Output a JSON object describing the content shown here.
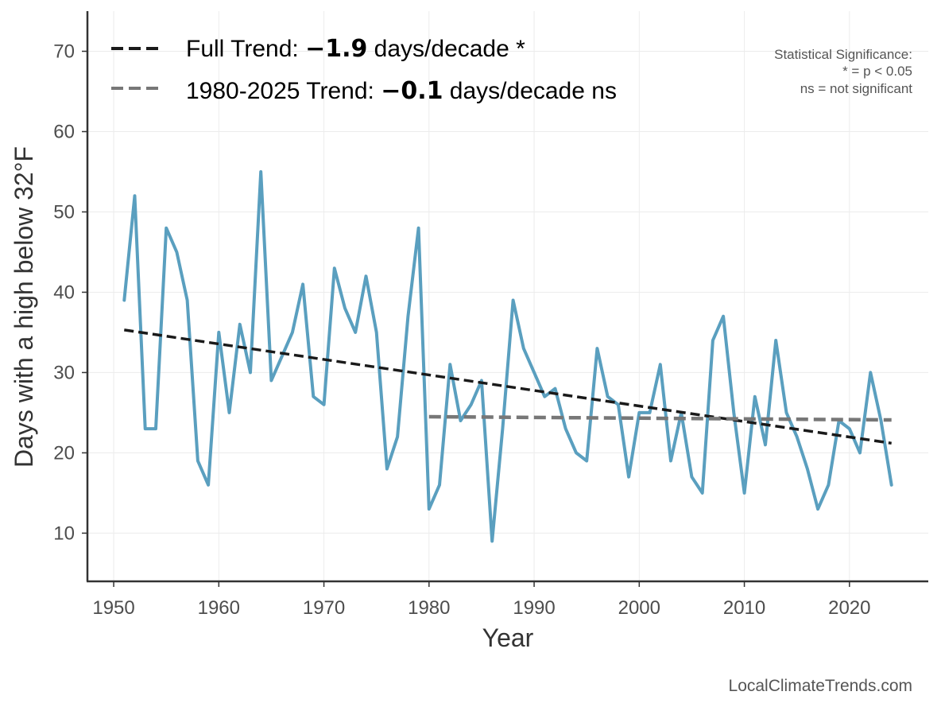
{
  "chart_data": {
    "type": "line",
    "xlabel": "Year",
    "ylabel": "Days with a high below 32°F",
    "xlim": [
      1947.5,
      2027.5
    ],
    "ylim": [
      4,
      75
    ],
    "xticks": [
      1950,
      1960,
      1970,
      1980,
      1990,
      2000,
      2010,
      2020
    ],
    "yticks": [
      10,
      20,
      30,
      40,
      50,
      60,
      70
    ],
    "grid": true,
    "series": [
      {
        "name": "Days with a high below 32°F",
        "color": "#5a9fbf",
        "x": [
          1951,
          1952,
          1953,
          1954,
          1955,
          1956,
          1957,
          1958,
          1959,
          1960,
          1961,
          1962,
          1963,
          1964,
          1965,
          1966,
          1967,
          1968,
          1969,
          1970,
          1971,
          1972,
          1973,
          1974,
          1975,
          1976,
          1977,
          1978,
          1979,
          1980,
          1981,
          1982,
          1983,
          1984,
          1985,
          1986,
          1987,
          1988,
          1989,
          1990,
          1991,
          1992,
          1993,
          1994,
          1995,
          1996,
          1997,
          1998,
          1999,
          2000,
          2001,
          2002,
          2003,
          2004,
          2005,
          2006,
          2007,
          2008,
          2009,
          2010,
          2011,
          2012,
          2013,
          2014,
          2015,
          2016,
          2017,
          2018,
          2019,
          2020,
          2021,
          2022,
          2023,
          2024
        ],
        "values": [
          39,
          52,
          23,
          23,
          48,
          45,
          39,
          19,
          16,
          35,
          25,
          36,
          30,
          55,
          29,
          32,
          35,
          41,
          27,
          26,
          43,
          38,
          35,
          42,
          35,
          18,
          22,
          37,
          48,
          13,
          16,
          31,
          24,
          26,
          29,
          9,
          23,
          39,
          33,
          30,
          27,
          28,
          23,
          20,
          19,
          33,
          27,
          26,
          17,
          25,
          25,
          31,
          19,
          25,
          17,
          15,
          34,
          37,
          25,
          15,
          27,
          21,
          34,
          25,
          22,
          18,
          13,
          16,
          24,
          23,
          20,
          30,
          24,
          16
        ]
      }
    ],
    "trends": [
      {
        "name": "Full Trend",
        "style": "dashed",
        "color": "#1a1a1a",
        "x": [
          1951,
          2024
        ],
        "y": [
          35.3,
          21.2
        ],
        "legend_prefix": "Full Trend: ",
        "legend_value": "−1.9",
        "legend_suffix": " days/decade *"
      },
      {
        "name": "1980-2025 Trend",
        "style": "dashed",
        "color": "#777777",
        "x": [
          1980,
          2024
        ],
        "y": [
          24.5,
          24.1
        ],
        "legend_prefix": "1980-2025 Trend: ",
        "legend_value": "−0.1",
        "legend_suffix": " days/decade ns"
      }
    ],
    "legend_position": "top-left",
    "annotation": {
      "lines": [
        "Statistical Significance:",
        "* = p < 0.05",
        "ns = not significant"
      ]
    },
    "source": "LocalClimateTrends.com"
  }
}
